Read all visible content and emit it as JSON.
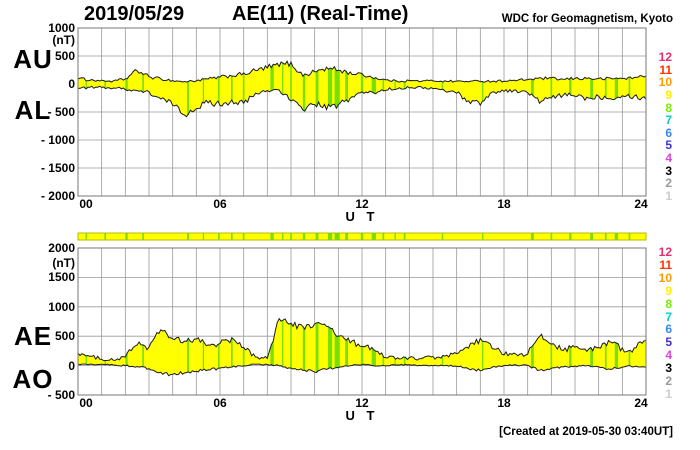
{
  "header": {
    "date": "2019/05/29",
    "title": "AE(11) (Real-Time)",
    "source": "WDC for Geomagnetism, Kyoto"
  },
  "footer": {
    "created": "[Created at 2019-05-30 03:40UT]"
  },
  "colors": {
    "background": "#ffffff",
    "fill": "#ffff00",
    "fill_alt": "#77e000",
    "outline": "#1c1c1c",
    "grid": "#9a9a9a",
    "border": "#777777",
    "bar_border": "#b8b800",
    "text": "#000000"
  },
  "legend": {
    "items": [
      {
        "label": "12",
        "color": "#e62e6e"
      },
      {
        "label": "11",
        "color": "#ff3300"
      },
      {
        "label": "10",
        "color": "#ff9900"
      },
      {
        "label": "9",
        "color": "#ffee00"
      },
      {
        "label": "8",
        "color": "#77ee00"
      },
      {
        "label": "7",
        "color": "#00cccc"
      },
      {
        "label": "6",
        "color": "#3388ee"
      },
      {
        "label": "5",
        "color": "#4433cc"
      },
      {
        "label": "4",
        "color": "#dd44dd"
      },
      {
        "label": "3",
        "color": "#000000"
      },
      {
        "label": "2",
        "color": "#999999"
      },
      {
        "label": "1",
        "color": "#cccccc"
      }
    ]
  },
  "station_stripes": [
    [
      0.35,
      0.05
    ],
    [
      1.15,
      0.07
    ],
    [
      2.05,
      0.1
    ],
    [
      2.75,
      0.07
    ],
    [
      4.65,
      0.08
    ],
    [
      5.3,
      0.05
    ],
    [
      5.95,
      0.07
    ],
    [
      6.5,
      0.07
    ],
    [
      7.0,
      0.07
    ],
    [
      8.2,
      0.14
    ],
    [
      8.65,
      0.05
    ],
    [
      9.0,
      0.07
    ],
    [
      9.55,
      0.1
    ],
    [
      10.1,
      0.12
    ],
    [
      10.65,
      0.18
    ],
    [
      10.95,
      0.22
    ],
    [
      11.35,
      0.12
    ],
    [
      12.0,
      0.1
    ],
    [
      12.5,
      0.18
    ],
    [
      12.9,
      0.07
    ],
    [
      13.4,
      0.05
    ],
    [
      13.8,
      0.07
    ],
    [
      15.4,
      0.05
    ],
    [
      17.1,
      0.05
    ],
    [
      19.2,
      0.12
    ],
    [
      20.0,
      0.07
    ],
    [
      20.8,
      0.1
    ],
    [
      21.7,
      0.12
    ],
    [
      22.3,
      0.07
    ],
    [
      22.75,
      0.14
    ],
    [
      23.3,
      0.07
    ]
  ],
  "chart_data": [
    {
      "type": "area",
      "name": "AU / AL indices",
      "unit": "(nT)",
      "xlabel": "U T",
      "xticks": [
        "00",
        "06",
        "12",
        "18",
        "24"
      ],
      "yticks": [
        "1000",
        "500",
        "0",
        "- 500",
        "- 1000",
        "- 1500",
        "- 2000"
      ],
      "ylim": [
        -2000,
        1000
      ],
      "x_hours_range": [
        0,
        24
      ],
      "x_hours_step": 0.5,
      "grid": true,
      "series": [
        {
          "name": "AU",
          "values": [
            100,
            70,
            60,
            50,
            90,
            240,
            130,
            90,
            60,
            40,
            60,
            90,
            120,
            150,
            180,
            240,
            290,
            340,
            370,
            150,
            220,
            280,
            250,
            200,
            170,
            110,
            70,
            50,
            60,
            50,
            60,
            50,
            50,
            45,
            50,
            50,
            55,
            60,
            80,
            100,
            100,
            80,
            100,
            100,
            90,
            100,
            100,
            110,
            160
          ]
        },
        {
          "name": "AL",
          "values": [
            -80,
            -60,
            -60,
            -70,
            -90,
            -120,
            -150,
            -270,
            -360,
            -550,
            -420,
            -330,
            -360,
            -300,
            -350,
            -180,
            -120,
            -100,
            -300,
            -450,
            -350,
            -430,
            -380,
            -250,
            -150,
            -160,
            -100,
            -80,
            -60,
            -60,
            -80,
            -120,
            -150,
            -300,
            -350,
            -150,
            -120,
            -120,
            -150,
            -320,
            -250,
            -200,
            -200,
            -250,
            -220,
            -250,
            -200,
            -220,
            -260
          ]
        }
      ]
    },
    {
      "type": "area",
      "name": "AE / AO indices",
      "unit": "(nT)",
      "xlabel": "U T",
      "xticks": [
        "00",
        "06",
        "12",
        "18",
        "24"
      ],
      "yticks": [
        "2000",
        "1500",
        "1000",
        "500",
        "0",
        "- 500"
      ],
      "ylim": [
        -500,
        2000
      ],
      "x_hours_range": [
        0,
        24
      ],
      "x_hours_step": 0.5,
      "grid": true,
      "series": [
        {
          "name": "AE",
          "values": [
            220,
            150,
            120,
            90,
            150,
            380,
            300,
            620,
            450,
            400,
            450,
            350,
            380,
            450,
            300,
            150,
            120,
            820,
            700,
            650,
            700,
            680,
            500,
            400,
            350,
            250,
            150,
            120,
            130,
            120,
            140,
            150,
            200,
            300,
            450,
            300,
            200,
            180,
            200,
            500,
            380,
            280,
            320,
            250,
            300,
            420,
            280,
            280,
            450
          ]
        },
        {
          "name": "AO",
          "values": [
            30,
            20,
            30,
            10,
            0,
            -20,
            -50,
            -120,
            -150,
            -120,
            -100,
            -70,
            -50,
            -20,
            0,
            30,
            20,
            0,
            -50,
            -80,
            -100,
            -60,
            -30,
            0,
            20,
            0,
            0,
            10,
            10,
            0,
            0,
            0,
            -10,
            -50,
            -80,
            -30,
            0,
            10,
            0,
            -80,
            -50,
            -20,
            -10,
            0,
            -30,
            -60,
            -20,
            -10,
            -20
          ]
        }
      ]
    }
  ]
}
